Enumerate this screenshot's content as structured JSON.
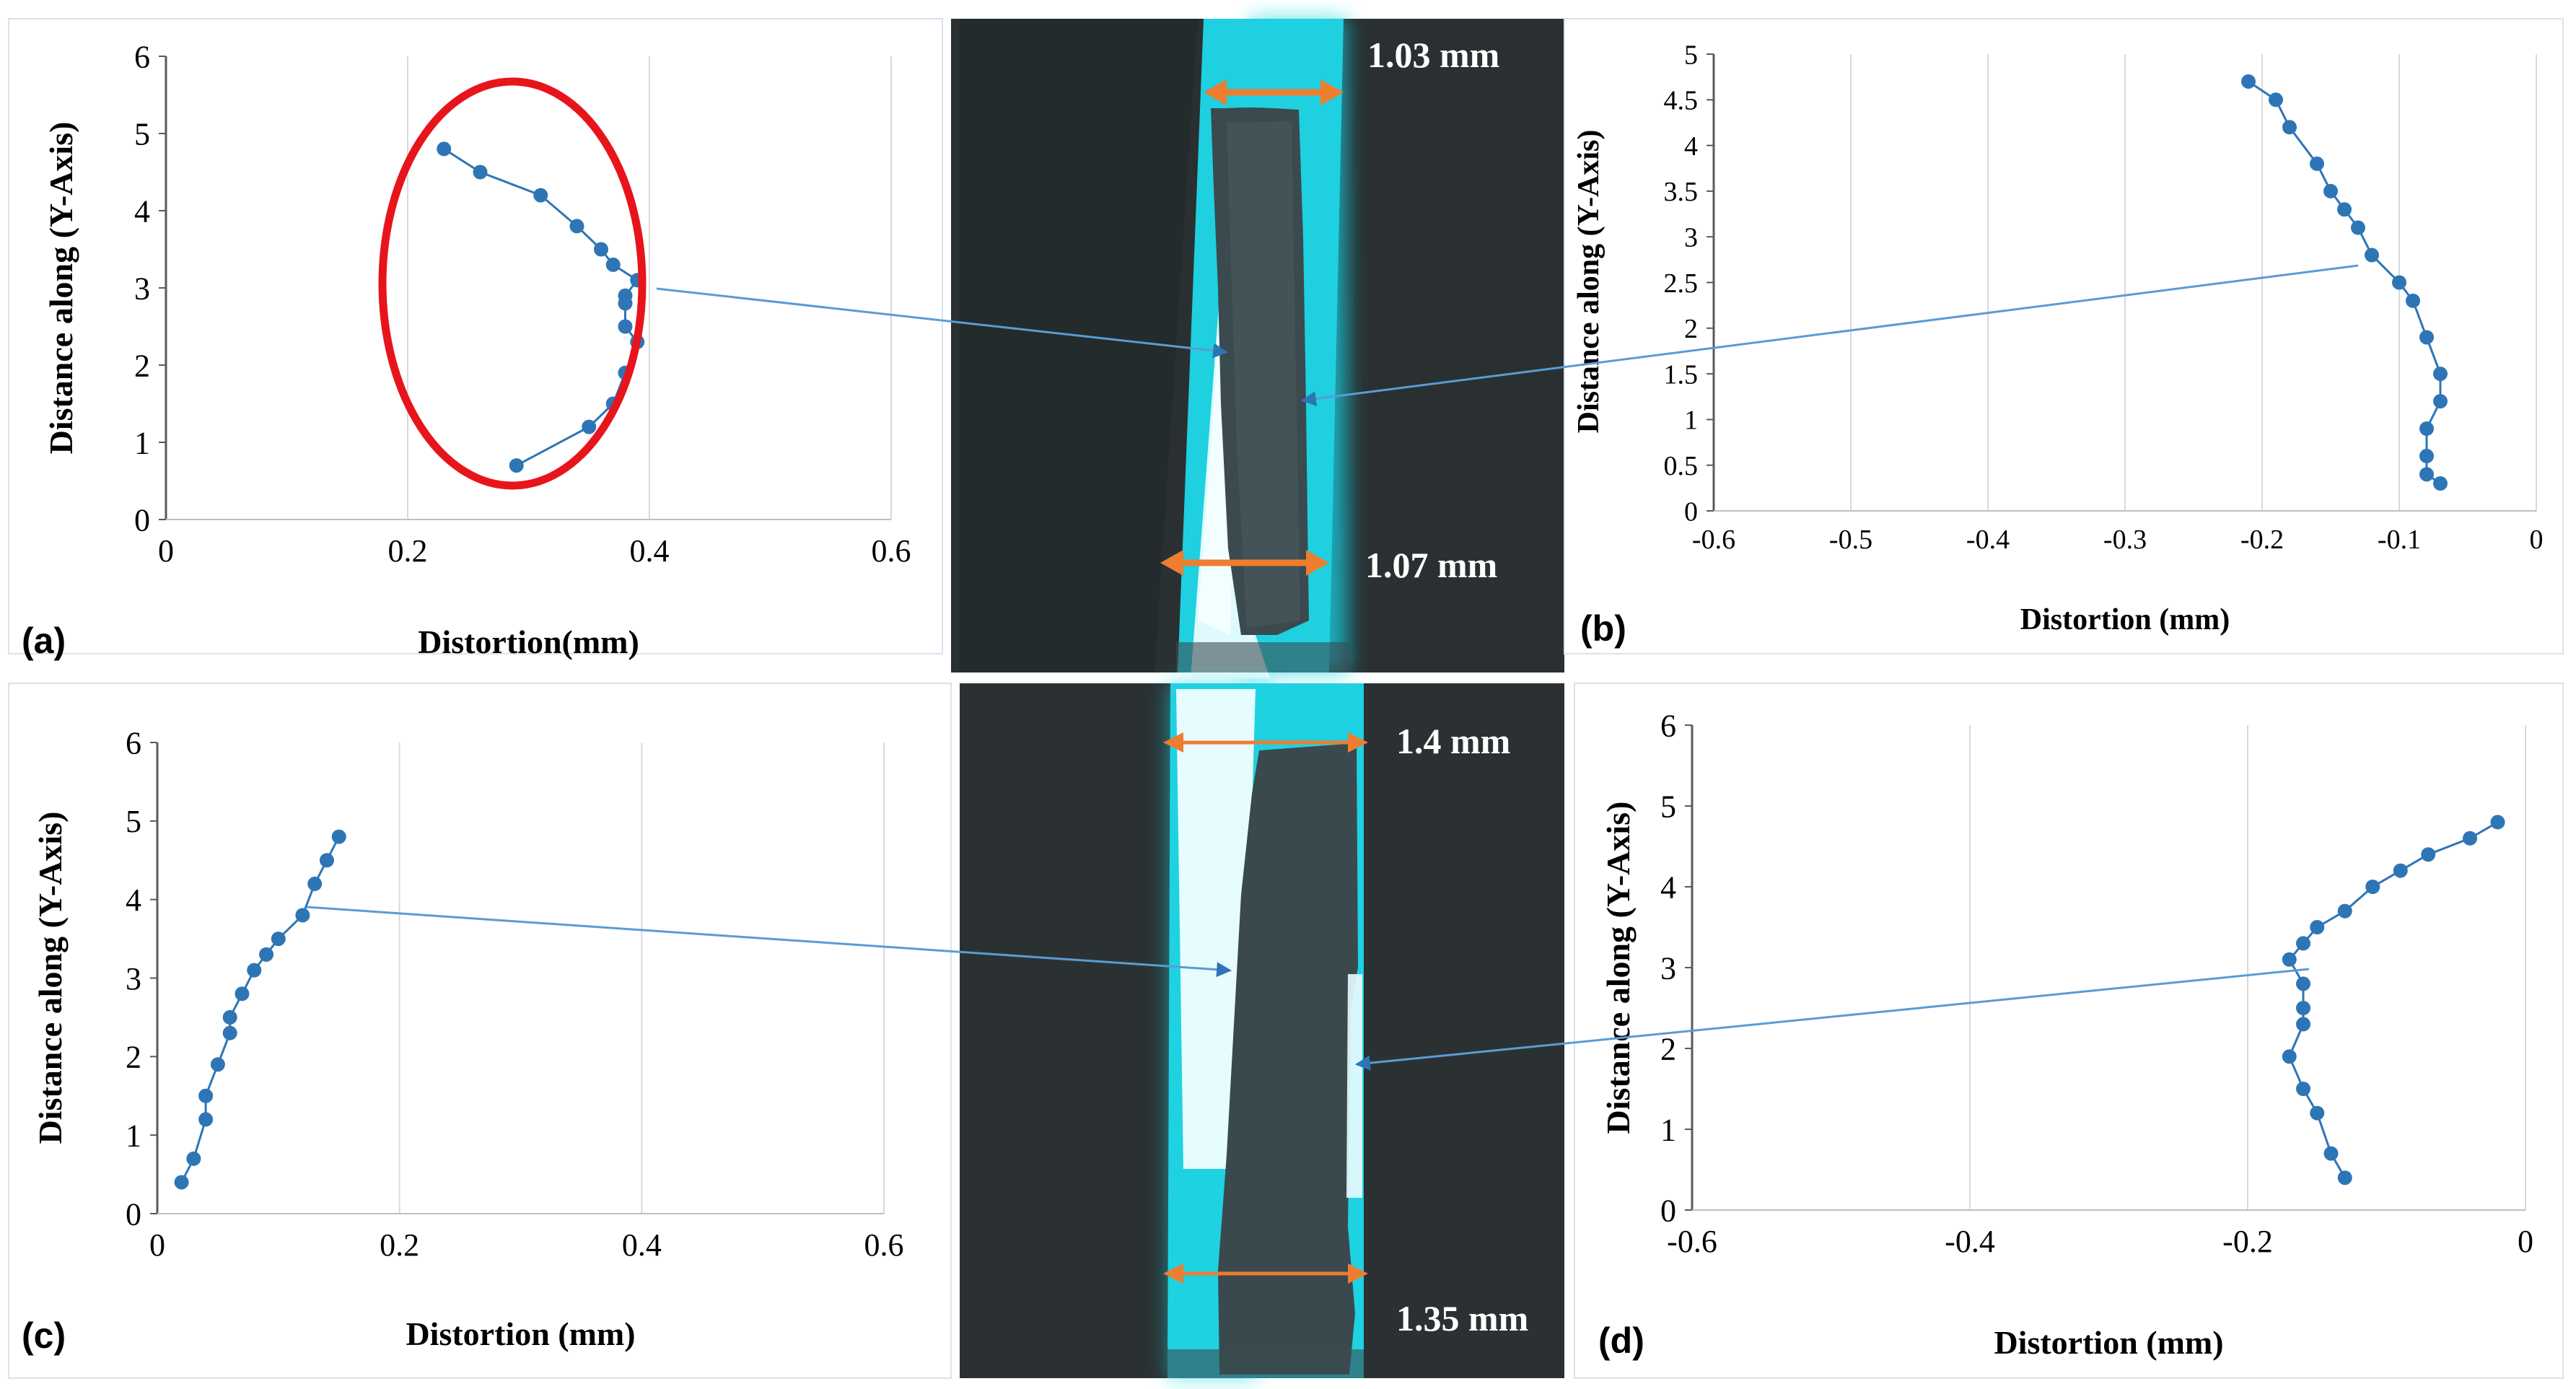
{
  "figure": {
    "panel_letters": [
      "(a)",
      "(b)",
      "(c)",
      "(d)"
    ],
    "photo_top": {
      "top_width_label": "1.03 mm",
      "bottom_width_label": "1.07 mm"
    },
    "photo_bottom": {
      "top_width_label": "1.4 mm",
      "bottom_width_label": "1.35 mm"
    },
    "colors": {
      "series": "#2e75b6",
      "connector": "#5b9bd5",
      "highlight_ellipse": "#e8141c",
      "width_arrow": "#ed7d31",
      "photo_glow": "#18d2e4",
      "photo_background": "#2a3032"
    }
  },
  "chart_data": [
    {
      "panel": "(a)",
      "type": "line",
      "xlabel": "Distortion(mm)",
      "ylabel": "Distance along (Y-Axis)",
      "xlim": [
        0,
        0.6
      ],
      "ylim": [
        0,
        6
      ],
      "x_ticks": [
        "0",
        "0.2",
        "0.4",
        "0.6"
      ],
      "y_ticks": [
        "0",
        "1",
        "2",
        "3",
        "4",
        "5",
        "6"
      ],
      "grid": "vertical",
      "highlight": "ellipse",
      "series": [
        {
          "x": [
            0.29,
            0.35,
            0.37,
            0.38,
            0.39,
            0.38,
            0.38,
            0.38,
            0.39,
            0.37,
            0.36,
            0.34,
            0.31,
            0.26,
            0.23
          ],
          "y": [
            0.7,
            1.2,
            1.5,
            1.9,
            2.3,
            2.5,
            2.8,
            2.9,
            3.1,
            3.3,
            3.5,
            3.8,
            4.2,
            4.5,
            4.8
          ]
        }
      ]
    },
    {
      "panel": "(b)",
      "type": "line",
      "xlabel": "Distortion (mm)",
      "ylabel": "Distance along (Y-Axis)",
      "xlim": [
        -0.6,
        0
      ],
      "ylim": [
        0,
        5
      ],
      "x_ticks": [
        "-0.6",
        "-0.5",
        "-0.4",
        "-0.3",
        "-0.2",
        "-0.1",
        "0"
      ],
      "y_ticks": [
        "0",
        "0.5",
        "1",
        "1.5",
        "2",
        "2.5",
        "3",
        "3.5",
        "4",
        "4.5",
        "5"
      ],
      "grid": "vertical",
      "series": [
        {
          "x": [
            -0.07,
            -0.08,
            -0.08,
            -0.08,
            -0.07,
            -0.07,
            -0.08,
            -0.09,
            -0.1,
            -0.12,
            -0.13,
            -0.14,
            -0.15,
            -0.16,
            -0.18,
            -0.19,
            -0.21
          ],
          "y": [
            0.3,
            0.4,
            0.6,
            0.9,
            1.2,
            1.5,
            1.9,
            2.3,
            2.5,
            2.8,
            3.1,
            3.3,
            3.5,
            3.8,
            4.2,
            4.5,
            4.7
          ]
        }
      ]
    },
    {
      "panel": "(c)",
      "type": "line",
      "xlabel": "Distortion (mm)",
      "ylabel": "Distance along (Y-Axis)",
      "xlim": [
        0,
        0.6
      ],
      "ylim": [
        0,
        6
      ],
      "x_ticks": [
        "0",
        "0.2",
        "0.4",
        "0.6"
      ],
      "y_ticks": [
        "0",
        "1",
        "2",
        "3",
        "4",
        "5",
        "6"
      ],
      "grid": "vertical",
      "series": [
        {
          "x": [
            0.02,
            0.03,
            0.04,
            0.04,
            0.05,
            0.06,
            0.06,
            0.07,
            0.08,
            0.09,
            0.1,
            0.12,
            0.13,
            0.14,
            0.15
          ],
          "y": [
            0.4,
            0.7,
            1.2,
            1.5,
            1.9,
            2.3,
            2.5,
            2.8,
            3.1,
            3.3,
            3.5,
            3.8,
            4.2,
            4.5,
            4.8
          ]
        }
      ]
    },
    {
      "panel": "(d)",
      "type": "line",
      "xlabel": "Distortion (mm)",
      "ylabel": "Distance along (Y-Axis)",
      "xlim": [
        -0.6,
        0
      ],
      "ylim": [
        0,
        6
      ],
      "x_ticks": [
        "-0.6",
        "-0.4",
        "-0.2",
        "0"
      ],
      "y_ticks": [
        "0",
        "1",
        "2",
        "3",
        "4",
        "5",
        "6"
      ],
      "grid": "vertical",
      "series": [
        {
          "x": [
            -0.13,
            -0.14,
            -0.15,
            -0.16,
            -0.17,
            -0.16,
            -0.16,
            -0.16,
            -0.17,
            -0.16,
            -0.15,
            -0.13,
            -0.11,
            -0.09,
            -0.07,
            -0.04,
            -0.02
          ],
          "y": [
            0.4,
            0.7,
            1.2,
            1.5,
            1.9,
            2.3,
            2.5,
            2.8,
            3.1,
            3.3,
            3.5,
            3.7,
            4.0,
            4.2,
            4.4,
            4.6,
            4.8
          ]
        }
      ]
    }
  ]
}
